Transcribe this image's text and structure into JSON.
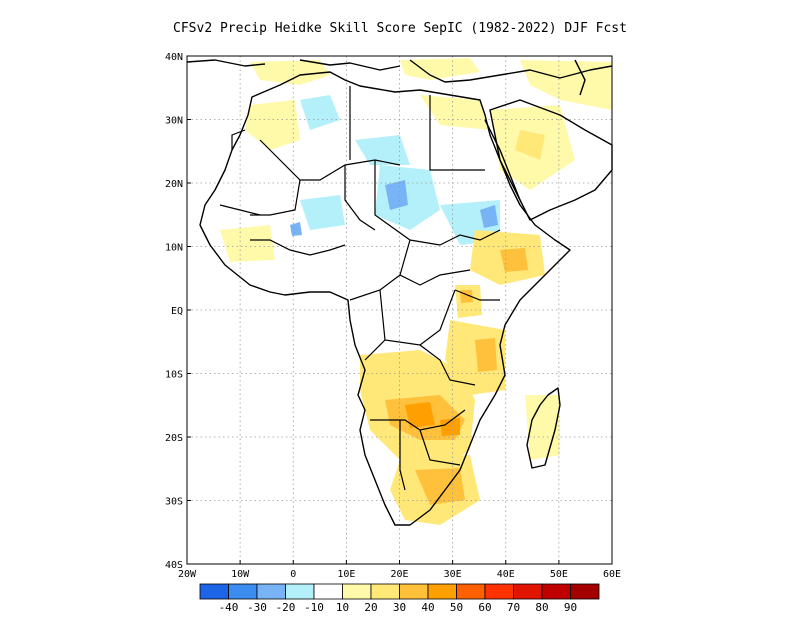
{
  "title": "CFSv2 Precip Heidke Skill Score SepIC (1982-2022) DJF Fcst",
  "map": {
    "x_ticks": [
      "20W",
      "10W",
      "0",
      "10E",
      "20E",
      "30E",
      "40E",
      "50E",
      "60E"
    ],
    "y_ticks": [
      "40N",
      "30N",
      "20N",
      "10N",
      "EQ",
      "10S",
      "20S",
      "30S",
      "40S"
    ],
    "lon_range": [
      -20,
      60
    ],
    "lat_range": [
      -40,
      40
    ],
    "lon_values": [
      -20,
      -10,
      0,
      10,
      20,
      30,
      40,
      50,
      60
    ],
    "lat_values": [
      40,
      30,
      20,
      10,
      0,
      -10,
      -20,
      -30,
      -40
    ],
    "grid": "dotted"
  },
  "colorbar": {
    "labels": [
      "-40",
      "-30",
      "-20",
      "-10",
      "10",
      "20",
      "30",
      "40",
      "50",
      "60",
      "70",
      "80",
      "90"
    ],
    "colors": [
      "#1e64e6",
      "#3c8cf0",
      "#78b4f5",
      "#b4f0fa",
      "#ffffff",
      "#fffaaa",
      "#ffe878",
      "#ffc03c",
      "#ffa000",
      "#ff6000",
      "#ff3200",
      "#e11400",
      "#c00000",
      "#a50000"
    ]
  }
}
